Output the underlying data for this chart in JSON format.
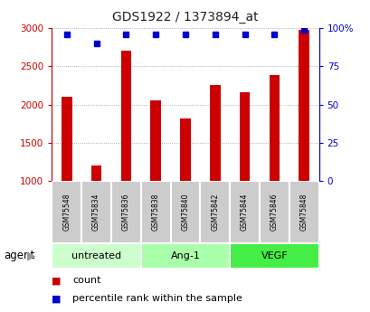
{
  "title": "GDS1922 / 1373894_at",
  "samples": [
    "GSM75548",
    "GSM75834",
    "GSM75836",
    "GSM75838",
    "GSM75840",
    "GSM75842",
    "GSM75844",
    "GSM75846",
    "GSM75848"
  ],
  "counts": [
    2100,
    1200,
    2700,
    2050,
    1820,
    2260,
    2160,
    2380,
    2980
  ],
  "percentiles": [
    96,
    90,
    96,
    96,
    96,
    96,
    96,
    96,
    99
  ],
  "ylim_left": [
    1000,
    3000
  ],
  "ylim_right": [
    0,
    100
  ],
  "yticks_left": [
    1000,
    1500,
    2000,
    2500,
    3000
  ],
  "yticks_right": [
    0,
    25,
    50,
    75,
    100
  ],
  "groups": [
    {
      "label": "untreated",
      "indices": [
        0,
        1,
        2
      ],
      "color": "#ccffcc"
    },
    {
      "label": "Ang-1",
      "indices": [
        3,
        4,
        5
      ],
      "color": "#aaffaa"
    },
    {
      "label": "VEGF",
      "indices": [
        6,
        7,
        8
      ],
      "color": "#44ee44"
    }
  ],
  "bar_color": "#cc0000",
  "dot_color": "#0000cc",
  "bar_bottom": 1000,
  "left_axis_color": "#cc0000",
  "right_axis_color": "#0000cc",
  "title_color": "#222222",
  "grid_color": "#999999",
  "sample_box_color": "#cccccc",
  "agent_label": "agent",
  "legend_count": "count",
  "legend_count_color": "#cc0000",
  "legend_pct": "percentile rank within the sample",
  "legend_pct_color": "#0000cc"
}
